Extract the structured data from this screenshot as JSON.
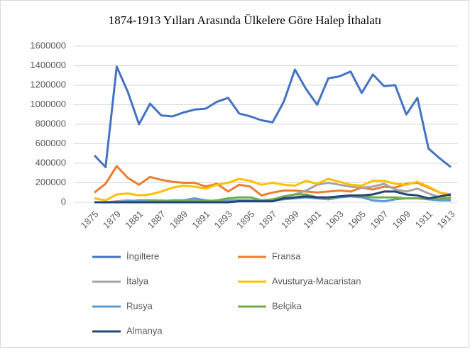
{
  "chart_data": {
    "type": "line",
    "title": "1874-1913 Yılları  Arasında Ülkelere  Göre Halep  İthalatı",
    "categories": [
      "1875",
      null,
      "1879",
      null,
      "1881",
      null,
      "1887",
      null,
      "1889",
      null,
      "1891",
      null,
      "1893",
      null,
      "1895",
      null,
      "1897",
      null,
      "1899",
      null,
      "1901",
      null,
      "1903",
      null,
      "1905",
      null,
      "1907",
      null,
      "1909",
      null,
      "1911",
      null,
      "1913"
    ],
    "ylim": [
      0,
      1600000
    ],
    "yticks": [
      0,
      200000,
      400000,
      600000,
      800000,
      1000000,
      1200000,
      1400000,
      1600000
    ],
    "grid": true,
    "legend": "bottom",
    "series": [
      {
        "name": "İngiltere",
        "color": "#4472c4",
        "values": [
          480000,
          360000,
          1390000,
          1130000,
          800000,
          1010000,
          890000,
          880000,
          920000,
          950000,
          960000,
          1030000,
          1070000,
          910000,
          880000,
          840000,
          820000,
          1030000,
          1360000,
          1160000,
          1000000,
          1270000,
          1290000,
          1340000,
          1120000,
          1310000,
          1190000,
          1200000,
          900000,
          1070000,
          550000,
          450000,
          360000
        ]
      },
      {
        "name": "Fransa",
        "color": "#ed7d31",
        "values": [
          100000,
          190000,
          370000,
          250000,
          180000,
          260000,
          230000,
          210000,
          200000,
          200000,
          160000,
          190000,
          110000,
          180000,
          160000,
          70000,
          100000,
          120000,
          120000,
          110000,
          100000,
          110000,
          120000,
          110000,
          150000,
          130000,
          160000,
          150000,
          190000,
          200000,
          150000,
          100000,
          70000
        ]
      },
      {
        "name": "İtalya",
        "color": "#a5a5a5",
        "values": [
          0,
          0,
          10000,
          20000,
          10000,
          20000,
          20000,
          10000,
          10000,
          20000,
          10000,
          10000,
          20000,
          20000,
          20000,
          10000,
          30000,
          60000,
          80000,
          120000,
          180000,
          200000,
          180000,
          160000,
          150000,
          160000,
          190000,
          130000,
          110000,
          140000,
          90000,
          50000,
          40000
        ]
      },
      {
        "name": "Avusturya-Macaristan",
        "color": "#ffc000",
        "values": [
          40000,
          20000,
          80000,
          90000,
          70000,
          80000,
          110000,
          150000,
          170000,
          160000,
          140000,
          180000,
          200000,
          240000,
          220000,
          180000,
          200000,
          180000,
          170000,
          220000,
          190000,
          240000,
          210000,
          180000,
          170000,
          220000,
          220000,
          190000,
          180000,
          210000,
          160000,
          100000,
          80000
        ]
      },
      {
        "name": "Rusya",
        "color": "#5b9bd5",
        "values": [
          0,
          0,
          0,
          10000,
          20000,
          20000,
          10000,
          20000,
          20000,
          40000,
          20000,
          10000,
          10000,
          20000,
          20000,
          10000,
          20000,
          30000,
          40000,
          50000,
          40000,
          30000,
          50000,
          60000,
          50000,
          20000,
          10000,
          30000,
          40000,
          40000,
          30000,
          20000,
          20000
        ]
      },
      {
        "name": "Belçika",
        "color": "#70ad47",
        "values": [
          0,
          0,
          0,
          0,
          0,
          10000,
          10000,
          10000,
          10000,
          10000,
          10000,
          20000,
          40000,
          50000,
          50000,
          20000,
          30000,
          60000,
          80000,
          80000,
          50000,
          40000,
          60000,
          70000,
          60000,
          50000,
          50000,
          50000,
          40000,
          40000,
          40000,
          30000,
          50000
        ]
      },
      {
        "name": "Almanya",
        "color": "#264478",
        "values": [
          0,
          0,
          0,
          0,
          0,
          0,
          0,
          0,
          0,
          0,
          0,
          0,
          0,
          10000,
          10000,
          10000,
          10000,
          40000,
          50000,
          60000,
          50000,
          50000,
          60000,
          70000,
          70000,
          80000,
          110000,
          110000,
          80000,
          70000,
          40000,
          60000,
          80000
        ]
      }
    ]
  }
}
